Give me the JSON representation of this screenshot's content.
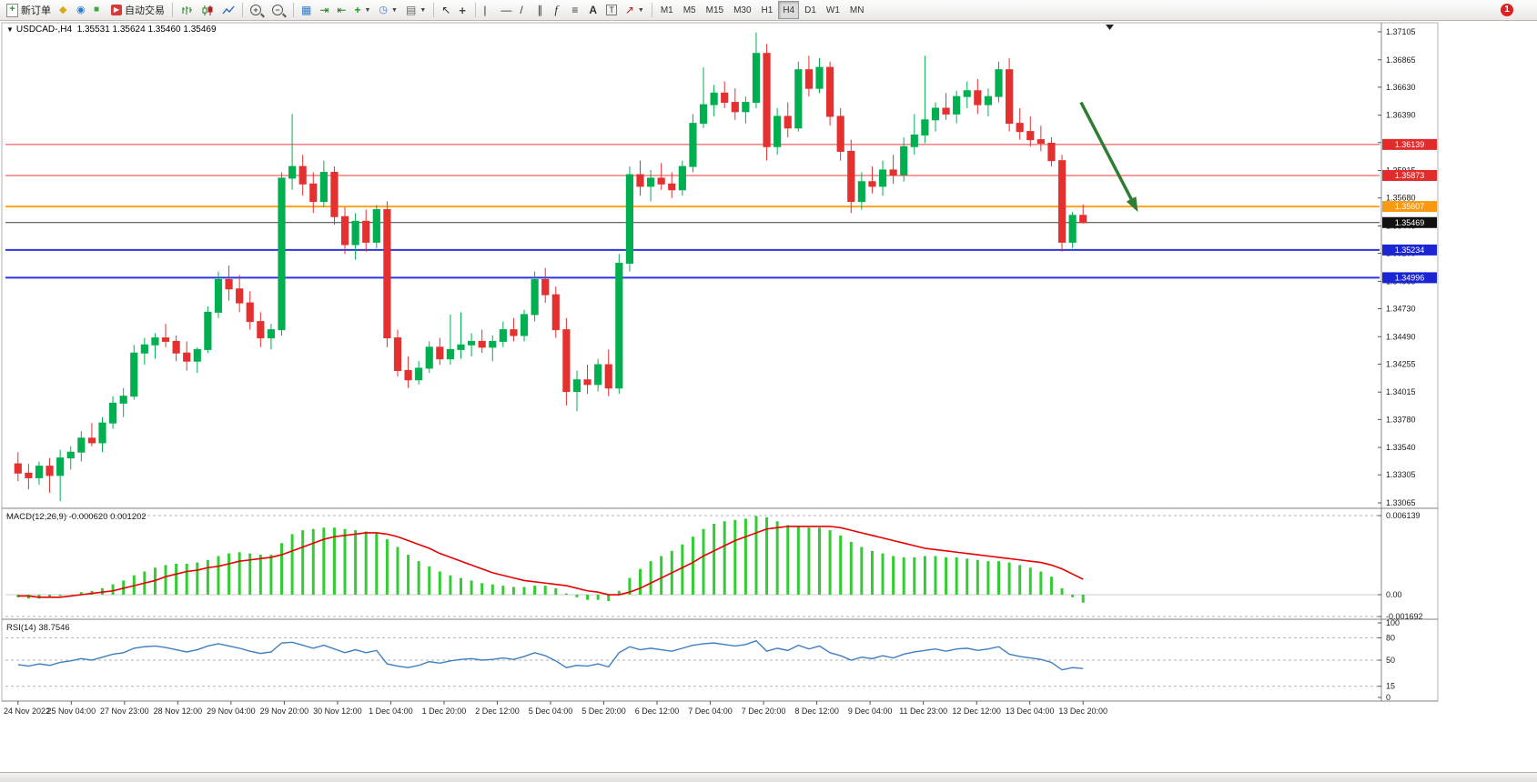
{
  "toolbar": {
    "new_order_label": "新订单",
    "auto_trading_label": "自动交易",
    "timeframes": [
      "M1",
      "M5",
      "M15",
      "M30",
      "H1",
      "H4",
      "D1",
      "W1",
      "MN"
    ],
    "active_timeframe": "H4",
    "notification_count": "1"
  },
  "chart": {
    "title": "USDCAD-,H4",
    "ohlc_text": "1.35531 1.35624 1.35460 1.35469"
  },
  "chart_data": {
    "type": "candlestick",
    "symbol": "USDCAD-",
    "timeframe": "H4",
    "header_ohlc": {
      "open": 1.35531,
      "high": 1.35624,
      "low": 1.3546,
      "close": 1.35469
    },
    "price_axis_ticks": [
      1.37105,
      1.36865,
      1.3663,
      1.3639,
      1.36155,
      1.35915,
      1.3568,
      1.3544,
      1.35205,
      1.34965,
      1.3473,
      1.3449,
      1.34255,
      1.34015,
      1.3378,
      1.3354,
      1.33305,
      1.33065
    ],
    "x_labels": [
      "24 Nov 2022",
      "25 Nov 04:00",
      "27 Nov 23:00",
      "28 Nov 12:00",
      "29 Nov 04:00",
      "29 Nov 20:00",
      "30 Nov 12:00",
      "1 Dec 04:00",
      "1 Dec 20:00",
      "2 Dec 12:00",
      "5 Dec 04:00",
      "5 Dec 20:00",
      "6 Dec 12:00",
      "7 Dec 04:00",
      "7 Dec 20:00",
      "8 Dec 12:00",
      "9 Dec 04:00",
      "11 Dec 23:00",
      "12 Dec 12:00",
      "13 Dec 04:00",
      "13 Dec 20:00"
    ],
    "candles": [
      [
        1.334,
        1.335,
        1.3325,
        1.3332
      ],
      [
        1.3332,
        1.334,
        1.3318,
        1.3328
      ],
      [
        1.3328,
        1.3342,
        1.3322,
        1.3338
      ],
      [
        1.3338,
        1.3345,
        1.3315,
        1.333
      ],
      [
        1.333,
        1.3352,
        1.3308,
        1.3345
      ],
      [
        1.3345,
        1.3355,
        1.3335,
        1.335
      ],
      [
        1.335,
        1.3368,
        1.3342,
        1.3362
      ],
      [
        1.3362,
        1.3375,
        1.3355,
        1.3358
      ],
      [
        1.3358,
        1.338,
        1.335,
        1.3375
      ],
      [
        1.3375,
        1.3398,
        1.337,
        1.3392
      ],
      [
        1.3392,
        1.3405,
        1.338,
        1.3398
      ],
      [
        1.3398,
        1.3442,
        1.3395,
        1.3435
      ],
      [
        1.3435,
        1.3448,
        1.3425,
        1.3442
      ],
      [
        1.3442,
        1.3452,
        1.343,
        1.3448
      ],
      [
        1.3448,
        1.346,
        1.344,
        1.3445
      ],
      [
        1.3445,
        1.345,
        1.3428,
        1.3435
      ],
      [
        1.3435,
        1.3445,
        1.342,
        1.3428
      ],
      [
        1.3428,
        1.344,
        1.3418,
        1.3438
      ],
      [
        1.3438,
        1.3475,
        1.3435,
        1.347
      ],
      [
        1.347,
        1.3505,
        1.3465,
        1.3498
      ],
      [
        1.3498,
        1.351,
        1.348,
        1.349
      ],
      [
        1.349,
        1.3502,
        1.347,
        1.3478
      ],
      [
        1.3478,
        1.3488,
        1.3455,
        1.3462
      ],
      [
        1.3462,
        1.347,
        1.344,
        1.3448
      ],
      [
        1.3448,
        1.346,
        1.3438,
        1.3455
      ],
      [
        1.3455,
        1.359,
        1.345,
        1.3585
      ],
      [
        1.3585,
        1.364,
        1.3575,
        1.3595
      ],
      [
        1.3595,
        1.3605,
        1.357,
        1.358
      ],
      [
        1.358,
        1.359,
        1.3555,
        1.3565
      ],
      [
        1.3565,
        1.36,
        1.356,
        1.359
      ],
      [
        1.359,
        1.3595,
        1.3545,
        1.3552
      ],
      [
        1.3552,
        1.356,
        1.352,
        1.3528
      ],
      [
        1.3528,
        1.3555,
        1.3515,
        1.3548
      ],
      [
        1.3548,
        1.3558,
        1.3522,
        1.353
      ],
      [
        1.353,
        1.3562,
        1.3525,
        1.3558
      ],
      [
        1.3558,
        1.3565,
        1.344,
        1.3448
      ],
      [
        1.3448,
        1.3455,
        1.3415,
        1.342
      ],
      [
        1.342,
        1.3432,
        1.3405,
        1.3412
      ],
      [
        1.3412,
        1.3428,
        1.3408,
        1.3422
      ],
      [
        1.3422,
        1.3445,
        1.3418,
        1.344
      ],
      [
        1.344,
        1.3448,
        1.3425,
        1.343
      ],
      [
        1.343,
        1.3468,
        1.3425,
        1.3438
      ],
      [
        1.3438,
        1.347,
        1.343,
        1.3442
      ],
      [
        1.3442,
        1.3452,
        1.3432,
        1.3445
      ],
      [
        1.3445,
        1.3455,
        1.3435,
        1.344
      ],
      [
        1.344,
        1.345,
        1.3428,
        1.3445
      ],
      [
        1.3445,
        1.3462,
        1.344,
        1.3455
      ],
      [
        1.3455,
        1.3465,
        1.3445,
        1.345
      ],
      [
        1.345,
        1.3472,
        1.3445,
        1.3468
      ],
      [
        1.3468,
        1.3505,
        1.3462,
        1.3498
      ],
      [
        1.3498,
        1.3508,
        1.3478,
        1.3485
      ],
      [
        1.3485,
        1.3492,
        1.3448,
        1.3455
      ],
      [
        1.3455,
        1.3465,
        1.339,
        1.3402
      ],
      [
        1.3402,
        1.342,
        1.3385,
        1.3412
      ],
      [
        1.3412,
        1.3425,
        1.34,
        1.3408
      ],
      [
        1.3408,
        1.343,
        1.3402,
        1.3425
      ],
      [
        1.3425,
        1.3438,
        1.3398,
        1.3405
      ],
      [
        1.3405,
        1.352,
        1.34,
        1.3512
      ],
      [
        1.3512,
        1.3595,
        1.3505,
        1.3588
      ],
      [
        1.3588,
        1.36,
        1.357,
        1.3578
      ],
      [
        1.3578,
        1.3592,
        1.3565,
        1.3585
      ],
      [
        1.3585,
        1.3598,
        1.3575,
        1.358
      ],
      [
        1.358,
        1.359,
        1.3568,
        1.3575
      ],
      [
        1.3575,
        1.36,
        1.357,
        1.3595
      ],
      [
        1.3595,
        1.364,
        1.359,
        1.3632
      ],
      [
        1.3632,
        1.368,
        1.3628,
        1.3648
      ],
      [
        1.3648,
        1.3665,
        1.3638,
        1.3658
      ],
      [
        1.3658,
        1.3668,
        1.3645,
        1.365
      ],
      [
        1.365,
        1.3662,
        1.3635,
        1.3642
      ],
      [
        1.3642,
        1.3655,
        1.3632,
        1.365
      ],
      [
        1.365,
        1.371,
        1.3645,
        1.3692
      ],
      [
        1.3692,
        1.37,
        1.36,
        1.3612
      ],
      [
        1.3612,
        1.3645,
        1.3605,
        1.3638
      ],
      [
        1.3638,
        1.365,
        1.362,
        1.3628
      ],
      [
        1.3628,
        1.3685,
        1.3625,
        1.3678
      ],
      [
        1.3678,
        1.369,
        1.3655,
        1.3662
      ],
      [
        1.3662,
        1.3688,
        1.3658,
        1.368
      ],
      [
        1.368,
        1.3685,
        1.363,
        1.3638
      ],
      [
        1.3638,
        1.3645,
        1.36,
        1.3608
      ],
      [
        1.3608,
        1.3618,
        1.3555,
        1.3565
      ],
      [
        1.3565,
        1.359,
        1.3558,
        1.3582
      ],
      [
        1.3582,
        1.3595,
        1.3572,
        1.3578
      ],
      [
        1.3578,
        1.36,
        1.357,
        1.3592
      ],
      [
        1.3592,
        1.3605,
        1.358,
        1.3588
      ],
      [
        1.3588,
        1.362,
        1.3582,
        1.3612
      ],
      [
        1.3612,
        1.364,
        1.3605,
        1.3622
      ],
      [
        1.3622,
        1.369,
        1.3615,
        1.3635
      ],
      [
        1.3635,
        1.365,
        1.3625,
        1.3645
      ],
      [
        1.3645,
        1.3658,
        1.3635,
        1.364
      ],
      [
        1.364,
        1.366,
        1.3632,
        1.3655
      ],
      [
        1.3655,
        1.3668,
        1.3645,
        1.366
      ],
      [
        1.366,
        1.367,
        1.364,
        1.3648
      ],
      [
        1.3648,
        1.3662,
        1.3638,
        1.3655
      ],
      [
        1.3655,
        1.3685,
        1.365,
        1.3678
      ],
      [
        1.3678,
        1.3688,
        1.3625,
        1.3632
      ],
      [
        1.3632,
        1.3645,
        1.3618,
        1.3625
      ],
      [
        1.3625,
        1.3638,
        1.3612,
        1.3618
      ],
      [
        1.3618,
        1.363,
        1.3608,
        1.3615
      ],
      [
        1.3615,
        1.362,
        1.3595,
        1.36
      ],
      [
        1.36,
        1.3605,
        1.3522,
        1.353
      ],
      [
        1.353,
        1.3556,
        1.3525,
        1.35531
      ],
      [
        1.35531,
        1.35624,
        1.3546,
        1.35469
      ]
    ],
    "hlines": [
      {
        "price": 1.36139,
        "label": "1.36139",
        "color": "#f23b3b",
        "tag_bg": "#e22b2b",
        "width": 1
      },
      {
        "price": 1.35873,
        "label": "1.35873",
        "color": "#f23b3b",
        "tag_bg": "#e22b2b",
        "width": 1
      },
      {
        "price": 1.35607,
        "label": "1.35607",
        "color": "#ffa21f",
        "tag_bg": "#f79911",
        "width": 2
      },
      {
        "price": 1.35469,
        "label": "1.35469",
        "color": "#3a3a3a",
        "tag_bg": "#111111",
        "width": 1
      },
      {
        "price": 1.35234,
        "label": "1.35234",
        "color": "#2b35e0",
        "tag_bg": "#1b25d4",
        "width": 2
      },
      {
        "price": 1.34996,
        "label": "1.34996",
        "color": "#2b35e0",
        "tag_bg": "#1b25d4",
        "width": 2
      }
    ],
    "arrow": {
      "from": {
        "bar": 100.8,
        "price": 1.365
      },
      "to": {
        "bar": 106.2,
        "price": 1.3556
      },
      "color": "#2e7d32"
    },
    "macd": {
      "label": "MACD(12,26,9)",
      "values_text": "-0.000620 0.001202",
      "axis_values": [
        0.006139,
        0,
        -0.001692
      ],
      "axis_labels": [
        "0.006139",
        "0.00",
        "-0.001692"
      ],
      "hist_color": "#32cd32",
      "signal_color": "#e80000",
      "histogram": [
        -0.0002,
        -0.0003,
        -0.0003,
        -0.0002,
        -0.0001,
        0.0,
        0.0002,
        0.0003,
        0.0005,
        0.0008,
        0.0011,
        0.0015,
        0.0018,
        0.0021,
        0.0023,
        0.0024,
        0.0024,
        0.0025,
        0.0027,
        0.003,
        0.0032,
        0.0033,
        0.0032,
        0.0031,
        0.0031,
        0.004,
        0.0047,
        0.005,
        0.0051,
        0.0052,
        0.0052,
        0.0051,
        0.005,
        0.0049,
        0.0048,
        0.0043,
        0.0037,
        0.0031,
        0.0026,
        0.0022,
        0.0018,
        0.0015,
        0.0013,
        0.0011,
        0.0009,
        0.0008,
        0.0007,
        0.0006,
        0.0006,
        0.0007,
        0.0007,
        0.0005,
        0.0001,
        -0.0002,
        -0.0004,
        -0.0004,
        -0.0005,
        0.0003,
        0.0013,
        0.002,
        0.0026,
        0.003,
        0.0034,
        0.0039,
        0.0045,
        0.0051,
        0.0055,
        0.0057,
        0.0058,
        0.0059,
        0.0061,
        0.006,
        0.0057,
        0.0054,
        0.0053,
        0.0052,
        0.0052,
        0.005,
        0.0046,
        0.0041,
        0.0037,
        0.0034,
        0.0032,
        0.003,
        0.0029,
        0.0029,
        0.003,
        0.003,
        0.0029,
        0.0029,
        0.0028,
        0.0027,
        0.0026,
        0.0026,
        0.0025,
        0.0023,
        0.0021,
        0.0018,
        0.0014,
        0.0005,
        -0.0002,
        -0.00062
      ],
      "signal": [
        -0.0001,
        -0.0001,
        -0.0002,
        -0.0002,
        -0.0002,
        -0.0001,
        0.0,
        0.0001,
        0.0002,
        0.0003,
        0.0005,
        0.0007,
        0.0009,
        0.0011,
        0.0014,
        0.0016,
        0.0018,
        0.0019,
        0.0021,
        0.0022,
        0.0024,
        0.0026,
        0.0027,
        0.0028,
        0.0029,
        0.0031,
        0.0034,
        0.0037,
        0.004,
        0.0043,
        0.0045,
        0.0046,
        0.0047,
        0.0048,
        0.0048,
        0.0047,
        0.0045,
        0.0042,
        0.0039,
        0.0036,
        0.0032,
        0.0029,
        0.0026,
        0.0023,
        0.002,
        0.0017,
        0.0015,
        0.0013,
        0.0011,
        0.001,
        0.0009,
        0.0008,
        0.0007,
        0.0005,
        0.0003,
        0.0002,
        0.0,
        0.0,
        0.0002,
        0.0005,
        0.0009,
        0.0013,
        0.0017,
        0.0021,
        0.0025,
        0.003,
        0.0034,
        0.0038,
        0.0042,
        0.0045,
        0.0048,
        0.0051,
        0.0052,
        0.0053,
        0.0053,
        0.0053,
        0.0053,
        0.0053,
        0.0052,
        0.005,
        0.0048,
        0.0046,
        0.0044,
        0.0042,
        0.004,
        0.0038,
        0.0036,
        0.0035,
        0.0034,
        0.0033,
        0.0032,
        0.0031,
        0.003,
        0.0029,
        0.0028,
        0.0027,
        0.0026,
        0.0025,
        0.0023,
        0.002,
        0.0016,
        0.0012
      ]
    },
    "rsi": {
      "label": "RSI(14)",
      "value_text": "38.7546",
      "axis_values": [
        100,
        80,
        50,
        15,
        0
      ],
      "axis_labels": [
        "100",
        "80",
        "50",
        "15",
        "0"
      ],
      "levels": [
        80,
        50,
        15
      ],
      "line_color": "#3e7fc1",
      "values": [
        44,
        42,
        45,
        43,
        47,
        49,
        52,
        50,
        54,
        58,
        60,
        66,
        68,
        69,
        67,
        64,
        61,
        64,
        69,
        72,
        69,
        66,
        62,
        59,
        61,
        73,
        74,
        70,
        66,
        70,
        65,
        60,
        64,
        60,
        63,
        45,
        42,
        40,
        43,
        48,
        46,
        49,
        51,
        52,
        50,
        51,
        53,
        51,
        55,
        60,
        56,
        49,
        40,
        43,
        42,
        45,
        41,
        60,
        68,
        64,
        66,
        64,
        62,
        66,
        70,
        72,
        73,
        71,
        69,
        71,
        76,
        62,
        66,
        63,
        70,
        65,
        69,
        60,
        56,
        50,
        54,
        52,
        56,
        53,
        58,
        61,
        63,
        65,
        62,
        65,
        66,
        63,
        65,
        68,
        58,
        55,
        53,
        51,
        47,
        37,
        40,
        38.75
      ]
    },
    "colors": {
      "bull": "#00b050",
      "bear": "#e53030"
    }
  }
}
